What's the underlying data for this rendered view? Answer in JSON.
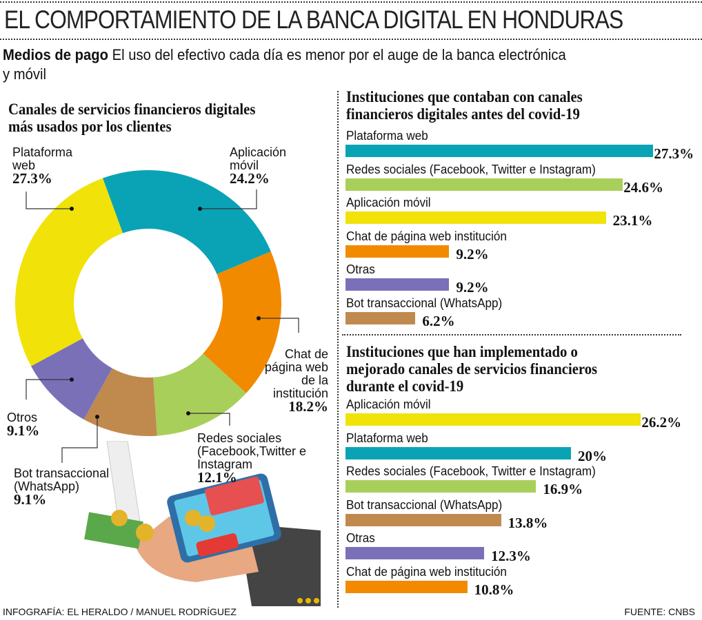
{
  "header": {
    "title": "EL COMPORTAMIENTO DE LA BANCA DIGITAL EN HONDURAS",
    "subtitle_bold": "Medios de pago",
    "subtitle": "El uso del efectivo cada día es menor por el auge de la banca electrónica y móvil"
  },
  "footer": {
    "credit": "INFOGRAFÍA: EL HERALDO / MANUEL RODRÍGUEZ",
    "source": "FUENTE: CNBS"
  },
  "chart_data": [
    {
      "type": "pie",
      "variant": "donut",
      "title": "Canales de servicios financieros digitales más usados por los clientes",
      "slices": [
        {
          "label": "Aplicación móvil",
          "value": 24.2,
          "display": "24.2%",
          "color": "#0aa3b6"
        },
        {
          "label": "Chat de página web de la institución",
          "value": 18.2,
          "display": "18.2%",
          "color": "#f28a00"
        },
        {
          "label": "Redes sociales (Facebook,Twitter e Instagram",
          "value": 12.1,
          "display": "12.1%",
          "color": "#a9cf5b"
        },
        {
          "label": "Bot transaccional (WhatsApp)",
          "value": 9.1,
          "display": "9.1%",
          "color": "#c08a4e"
        },
        {
          "label": "Otros",
          "value": 9.1,
          "display": "9.1%",
          "color": "#7a70b8"
        },
        {
          "label": "Plataforma web",
          "value": 27.3,
          "display": "27.3%",
          "color": "#f1e20a"
        }
      ]
    },
    {
      "type": "bar",
      "orientation": "horizontal",
      "title": "Instituciones que contaban con canales financieros digitales antes del covid-19",
      "bars": [
        {
          "label": "Plataforma web",
          "value": 27.3,
          "display": "27.3%",
          "color": "#0aa3b6"
        },
        {
          "label": "Redes sociales (Facebook, Twitter e Instagram)",
          "value": 24.6,
          "display": "24.6%",
          "color": "#a9cf5b"
        },
        {
          "label": "Aplicación móvil",
          "value": 23.1,
          "display": "23.1%",
          "color": "#f1e20a"
        },
        {
          "label": "Chat de página web institución",
          "value": 9.2,
          "display": "9.2%",
          "color": "#f28a00"
        },
        {
          "label": "Otras",
          "value": 9.2,
          "display": "9.2%",
          "color": "#7a70b8"
        },
        {
          "label": "Bot transaccional (WhatsApp)",
          "value": 6.2,
          "display": "6.2%",
          "color": "#c08a4e"
        }
      ]
    },
    {
      "type": "bar",
      "orientation": "horizontal",
      "title": "Instituciones que han implementado o mejorado canales de servicios financieros durante el covid-19",
      "bars": [
        {
          "label": "Aplicación móvil",
          "value": 26.2,
          "display": "26.2%",
          "color": "#f1e20a"
        },
        {
          "label": "Plataforma web",
          "value": 20,
          "display": "20%",
          "color": "#0aa3b6"
        },
        {
          "label": "Redes sociales (Facebook, Twitter e Instagram)",
          "value": 16.9,
          "display": "16.9%",
          "color": "#a9cf5b"
        },
        {
          "label": "Bot transaccional (WhatsApp)",
          "value": 13.8,
          "display": "13.8%",
          "color": "#c08a4e"
        },
        {
          "label": "Otras",
          "value": 12.3,
          "display": "12.3%",
          "color": "#7a70b8"
        },
        {
          "label": "Chat de página web institución",
          "value": 10.8,
          "display": "10.8%",
          "color": "#f28a00"
        }
      ]
    }
  ]
}
